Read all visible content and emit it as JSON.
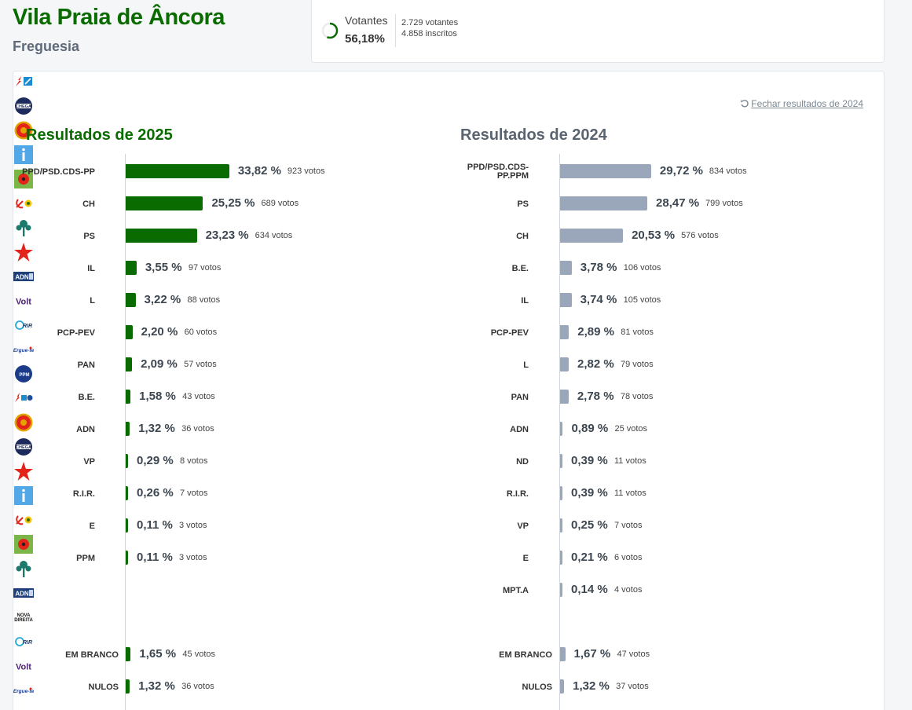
{
  "header": {
    "title": "Vila Praia de Âncora",
    "subtitle": "Freguesia"
  },
  "votantes": {
    "label": "Votantes",
    "pct": "56,18%",
    "fraction": 0.5618,
    "line1": "2.729 votantes",
    "line2": "4.858 inscritos"
  },
  "close_link": "Fechar resultados de 2024",
  "colors": {
    "accent": "#0a6b00",
    "bar2025": "#0a6b00",
    "bar2024": "#9aa6ba"
  },
  "chart_data": [
    {
      "type": "bar",
      "title": "Resultados de 2025",
      "rows": [
        {
          "label": "PPD/PSD.CDS-PP",
          "pct_text": "33,82 %",
          "votes_text": "923 votos",
          "pct": 33.82,
          "logo": "psd-cds-logo"
        },
        {
          "label": "CH",
          "pct_text": "25,25 %",
          "votes_text": "689 votos",
          "pct": 25.25,
          "logo": "chega-logo"
        },
        {
          "label": "PS",
          "pct_text": "23,23 %",
          "votes_text": "634 votos",
          "pct": 23.23,
          "logo": "ps-logo"
        },
        {
          "label": "IL",
          "pct_text": "3,55 %",
          "votes_text": "97 votos",
          "pct": 3.55,
          "logo": "il-logo"
        },
        {
          "label": "L",
          "pct_text": "3,22 %",
          "votes_text": "88 votos",
          "pct": 3.22,
          "logo": "livre-logo"
        },
        {
          "label": "PCP-PEV",
          "pct_text": "2,20 %",
          "votes_text": "60 votos",
          "pct": 2.2,
          "logo": "pcp-pev-logo"
        },
        {
          "label": "PAN",
          "pct_text": "2,09 %",
          "votes_text": "57 votos",
          "pct": 2.09,
          "logo": "pan-logo"
        },
        {
          "label": "B.E.",
          "pct_text": "1,58 %",
          "votes_text": "43 votos",
          "pct": 1.58,
          "logo": "be-logo"
        },
        {
          "label": "ADN",
          "pct_text": "1,32 %",
          "votes_text": "36 votos",
          "pct": 1.32,
          "logo": "adn-logo"
        },
        {
          "label": "VP",
          "pct_text": "0,29 %",
          "votes_text": "8 votos",
          "pct": 0.29,
          "logo": "volt-logo"
        },
        {
          "label": "R.I.R.",
          "pct_text": "0,26 %",
          "votes_text": "7 votos",
          "pct": 0.26,
          "logo": "rir-logo"
        },
        {
          "label": "E",
          "pct_text": "0,11 %",
          "votes_text": "3 votos",
          "pct": 0.11,
          "logo": "ergue-te-logo"
        },
        {
          "label": "PPM",
          "pct_text": "0,11 %",
          "votes_text": "3 votos",
          "pct": 0.11,
          "logo": "ppm-logo"
        }
      ],
      "extra": [
        {
          "label": "EM BRANCO",
          "pct_text": "1,65 %",
          "votes_text": "45 votos",
          "pct": 1.65
        },
        {
          "label": "NULOS",
          "pct_text": "1,32 %",
          "votes_text": "36 votos",
          "pct": 1.32
        }
      ]
    },
    {
      "type": "bar",
      "title": "Resultados de 2024",
      "rows": [
        {
          "label": "PPD/PSD.CDS-PP.PPM",
          "pct_text": "29,72 %",
          "votes_text": "834 votos",
          "pct": 29.72,
          "logo": "ad-logo"
        },
        {
          "label": "PS",
          "pct_text": "28,47 %",
          "votes_text": "799 votos",
          "pct": 28.47,
          "logo": "ps-logo"
        },
        {
          "label": "CH",
          "pct_text": "20,53 %",
          "votes_text": "576 votos",
          "pct": 20.53,
          "logo": "chega-logo"
        },
        {
          "label": "B.E.",
          "pct_text": "3,78 %",
          "votes_text": "106 votos",
          "pct": 3.78,
          "logo": "be-logo"
        },
        {
          "label": "IL",
          "pct_text": "3,74 %",
          "votes_text": "105 votos",
          "pct": 3.74,
          "logo": "il-logo"
        },
        {
          "label": "PCP-PEV",
          "pct_text": "2,89 %",
          "votes_text": "81 votos",
          "pct": 2.89,
          "logo": "pcp-pev-logo"
        },
        {
          "label": "L",
          "pct_text": "2,82 %",
          "votes_text": "79 votos",
          "pct": 2.82,
          "logo": "livre-logo"
        },
        {
          "label": "PAN",
          "pct_text": "2,78 %",
          "votes_text": "78 votos",
          "pct": 2.78,
          "logo": "pan-logo"
        },
        {
          "label": "ADN",
          "pct_text": "0,89 %",
          "votes_text": "25 votos",
          "pct": 0.89,
          "logo": "adn-logo"
        },
        {
          "label": "ND",
          "pct_text": "0,39 %",
          "votes_text": "11 votos",
          "pct": 0.39,
          "logo": "nova-direita-logo",
          "logo_text": "NOVA DIREITA"
        },
        {
          "label": "R.I.R.",
          "pct_text": "0,39 %",
          "votes_text": "11 votos",
          "pct": 0.39,
          "logo": "rir-logo"
        },
        {
          "label": "VP",
          "pct_text": "0,25 %",
          "votes_text": "7 votos",
          "pct": 0.25,
          "logo": "volt-logo"
        },
        {
          "label": "E",
          "pct_text": "0,21 %",
          "votes_text": "6 votos",
          "pct": 0.21,
          "logo": "ergue-te-logo"
        },
        {
          "label": "MPT.A",
          "pct_text": "0,14 %",
          "votes_text": "4 votos",
          "pct": 0.14,
          "logo": "mpt-logo"
        }
      ],
      "extra": [
        {
          "label": "EM BRANCO",
          "pct_text": "1,67 %",
          "votes_text": "47 votos",
          "pct": 1.67
        },
        {
          "label": "NULOS",
          "pct_text": "1,32 %",
          "votes_text": "37 votos",
          "pct": 1.32
        }
      ]
    }
  ]
}
